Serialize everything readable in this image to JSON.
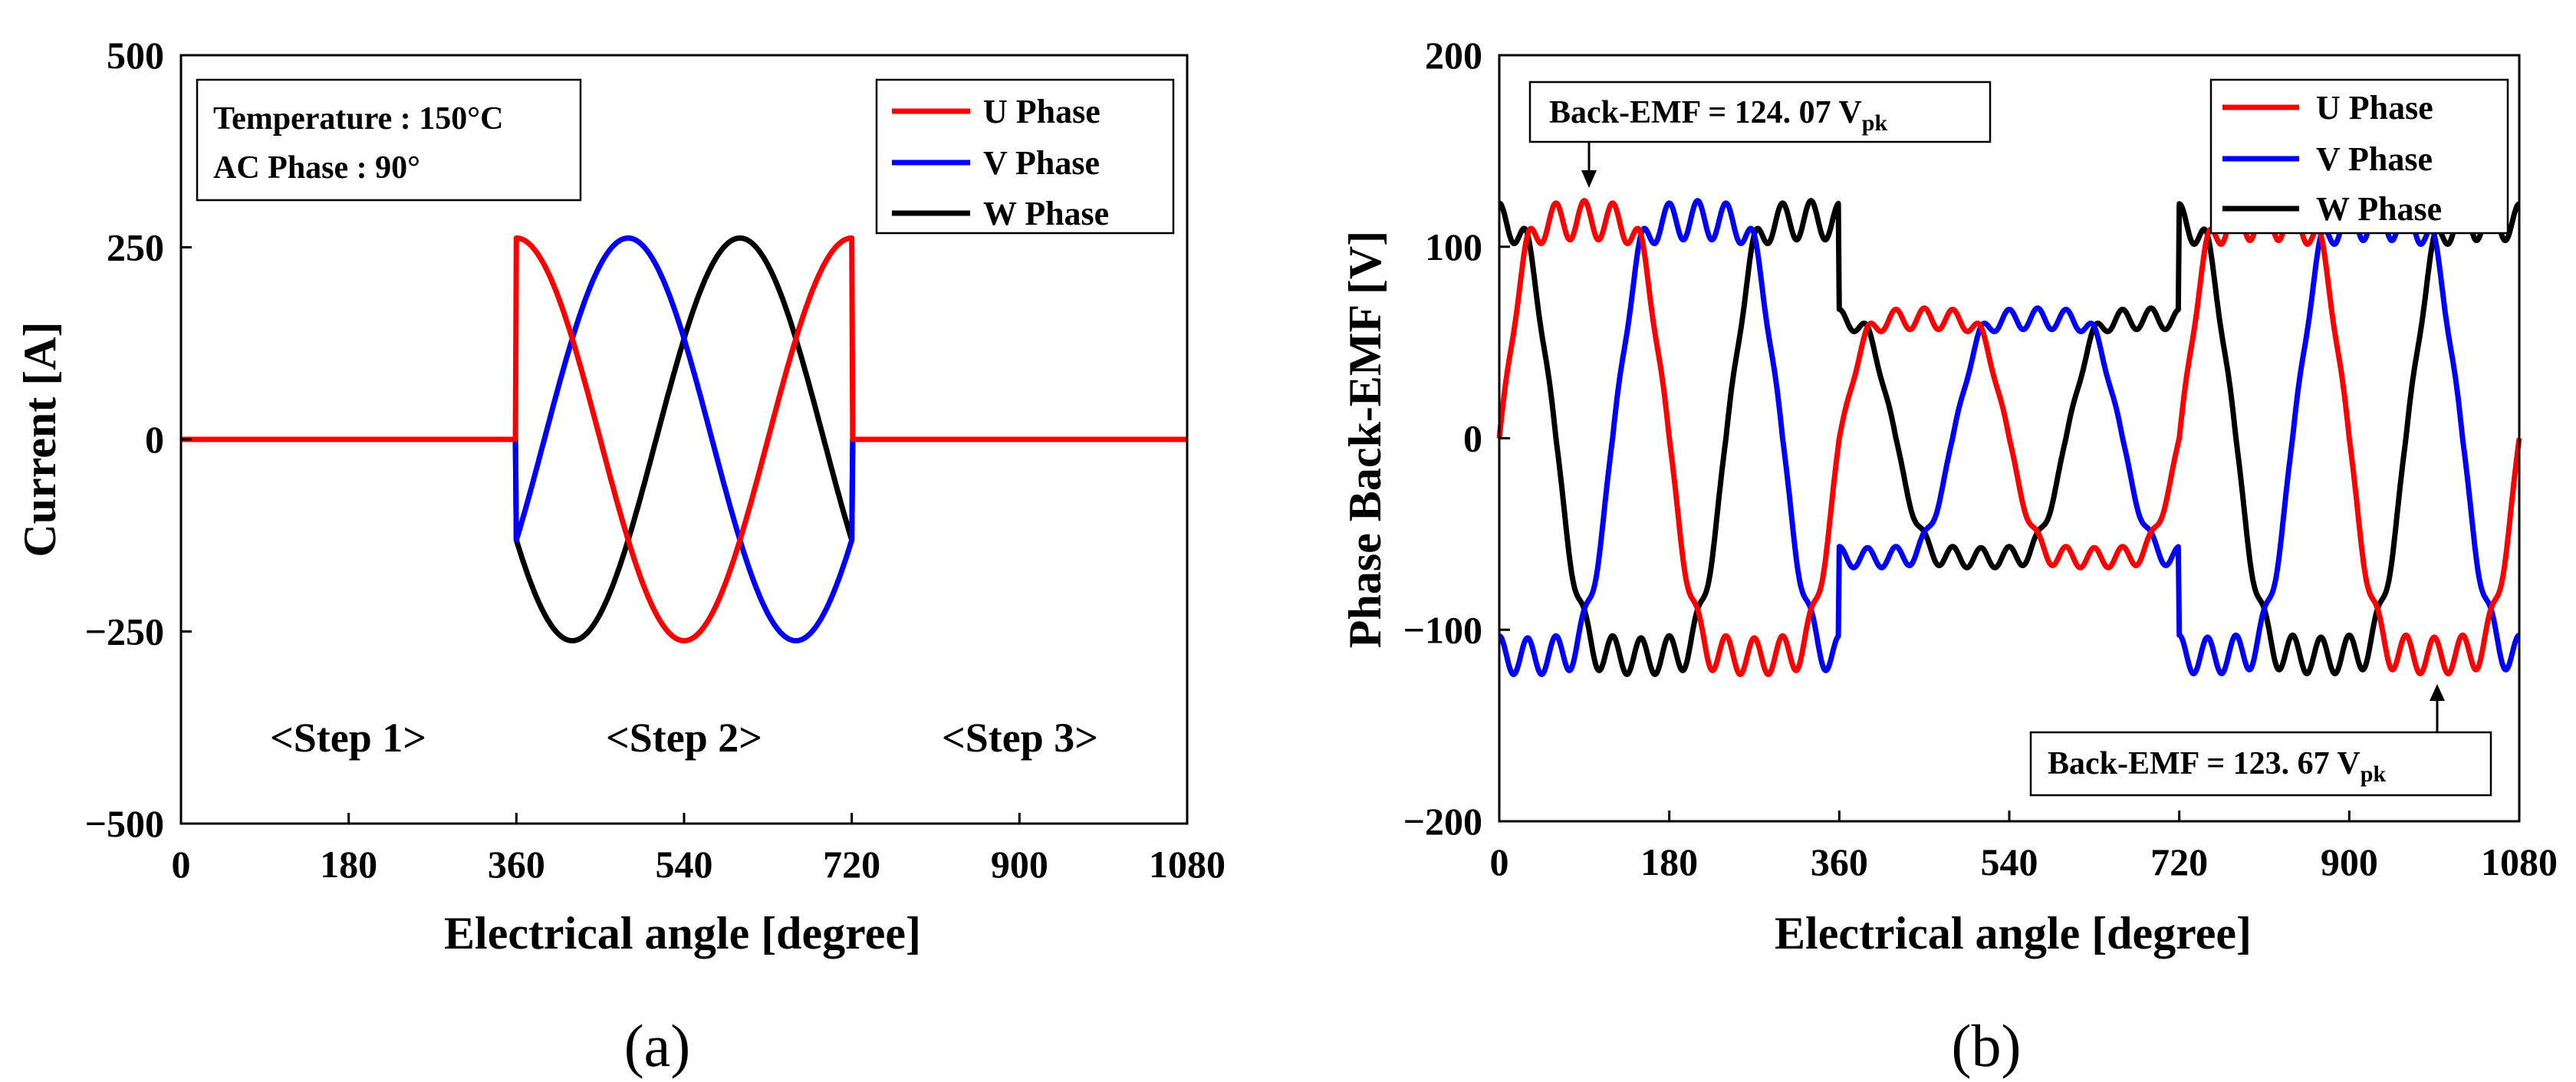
{
  "chart_data": [
    {
      "type": "line",
      "panel": "(a)",
      "title": "",
      "xlabel": "Electrical angle [degree]",
      "ylabel": "Current [A]",
      "xlim": [
        0,
        1080
      ],
      "ylim": [
        -500,
        500
      ],
      "xticks": [
        "0",
        "180",
        "360",
        "540",
        "720",
        "900",
        "1080"
      ],
      "yticks": [
        "500",
        "250",
        "0",
        "−250",
        "−500"
      ],
      "grid": false,
      "legend_position": "top-right",
      "annotation_lines": [
        "Temperature : 150°C",
        "AC Phase : 90°"
      ],
      "step_labels": [
        "<Step 1>",
        "<Step 2>",
        "<Step 3>"
      ],
      "amplitude": 262,
      "energized_range": [
        360,
        720
      ],
      "series": [
        {
          "name": "U Phase",
          "color": "#ff0000",
          "phase_offset_deg": 0
        },
        {
          "name": "V Phase",
          "color": "#0000ff",
          "phase_offset_deg": -120
        },
        {
          "name": "W Phase",
          "color": "#000000",
          "phase_offset_deg": 120
        }
      ]
    },
    {
      "type": "line",
      "panel": "(b)",
      "title": "",
      "xlabel": "Electrical angle [degree]",
      "ylabel": "Phase Back-EMF [V]",
      "xlim": [
        0,
        1080
      ],
      "ylim": [
        -200,
        200
      ],
      "xticks": [
        "0",
        "180",
        "360",
        "540",
        "720",
        "900",
        "1080"
      ],
      "yticks": [
        "200",
        "100",
        "0",
        "−100",
        "−200"
      ],
      "grid": false,
      "legend_position": "top-right",
      "peak_annotations": [
        {
          "text": "Back-EMF = 124. 07 V",
          "subscript": "pk",
          "x": 90,
          "y": 124.07
        },
        {
          "text": "Back-EMF = 123. 67 V",
          "subscript": "pk",
          "x": 990,
          "y": -123.67
        }
      ],
      "segment_amplitudes": [
        {
          "range": [
            0,
            360
          ],
          "peak": 124.07
        },
        {
          "range": [
            360,
            720
          ],
          "peak": 68
        },
        {
          "range": [
            720,
            1080
          ],
          "peak": 123.67
        }
      ],
      "series": [
        {
          "name": "U Phase",
          "color": "#ff0000",
          "phase_offset_deg": 0
        },
        {
          "name": "V Phase",
          "color": "#0000ff",
          "phase_offset_deg": -120
        },
        {
          "name": "W Phase",
          "color": "#000000",
          "phase_offset_deg": 120
        }
      ]
    }
  ]
}
